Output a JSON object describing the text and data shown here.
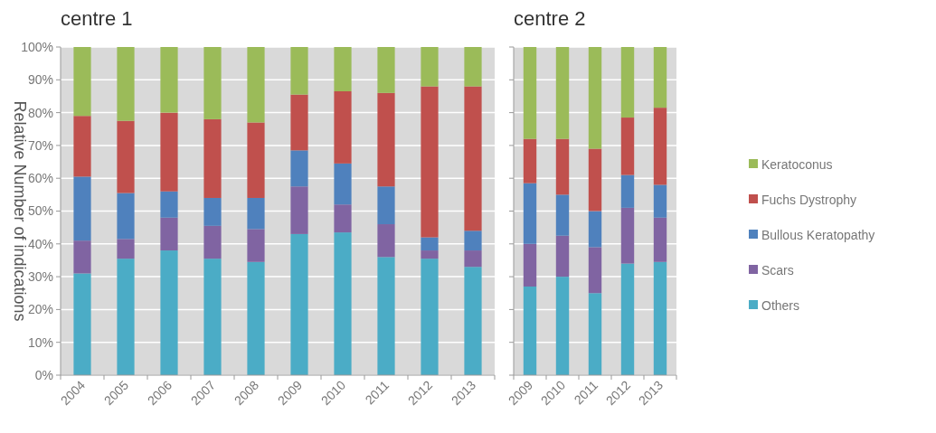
{
  "chart_data": [
    {
      "type": "bar",
      "title": "centre 1",
      "ylabel": "Relative Number of indications",
      "stacked": true,
      "categories": [
        "2004",
        "2005",
        "2006",
        "2007",
        "2008",
        "2009",
        "2010",
        "2011",
        "2012",
        "2013"
      ],
      "series": [
        {
          "color": "#4bacc6",
          "values": [
            31,
            35.5,
            38,
            35.5,
            34.5,
            43,
            43.5,
            36,
            35.5,
            33
          ]
        },
        {
          "color": "#8064a2",
          "values": [
            10,
            6,
            10,
            10,
            10,
            14.5,
            8.5,
            10,
            2.5,
            5
          ]
        },
        {
          "color": "#4f81bd",
          "values": [
            19.5,
            14,
            8,
            8.5,
            9.5,
            11,
            12.5,
            11.5,
            4,
            6
          ]
        },
        {
          "color": "#c0504d",
          "values": [
            18.5,
            22,
            24,
            24,
            23,
            17,
            22,
            28.5,
            46,
            44
          ]
        },
        {
          "color": "#9bbb59",
          "values": [
            21,
            22.5,
            20,
            22,
            23,
            14.5,
            13.5,
            14,
            12,
            12
          ]
        }
      ],
      "ylim": [
        0,
        100
      ],
      "yticks": [
        {
          "value": 0,
          "label": "0%"
        },
        {
          "value": 10,
          "label": "10%"
        },
        {
          "value": 20,
          "label": "20%"
        },
        {
          "value": 30,
          "label": "30%"
        },
        {
          "value": 40,
          "label": "40%"
        },
        {
          "value": 50,
          "label": "50%"
        },
        {
          "value": 60,
          "label": "60%"
        },
        {
          "value": 70,
          "label": "70%"
        },
        {
          "value": 80,
          "label": "80%"
        },
        {
          "value": 90,
          "label": "90%"
        },
        {
          "value": 100,
          "label": "100%"
        }
      ],
      "grid": "y",
      "legend": false
    },
    {
      "type": "bar",
      "title": "centre 2",
      "stacked": true,
      "categories": [
        "2009",
        "2010",
        "2011",
        "2012",
        "2013"
      ],
      "series": [
        {
          "name": "Others",
          "color": "#4bacc6",
          "values": [
            27,
            30,
            25,
            34,
            34.5
          ]
        },
        {
          "name": "Scars",
          "color": "#8064a2",
          "values": [
            13,
            12.5,
            14,
            17,
            13.5
          ]
        },
        {
          "name": "Bullous Keratopathy",
          "color": "#4f81bd",
          "values": [
            18.5,
            12.5,
            11,
            10,
            10
          ]
        },
        {
          "name": "Fuchs Dystrophy",
          "color": "#c0504d",
          "values": [
            13.5,
            17,
            19,
            17.5,
            23.5
          ]
        },
        {
          "name": "Keratoconus",
          "color": "#9bbb59",
          "values": [
            28,
            28,
            31,
            21.5,
            18.5
          ]
        }
      ],
      "ylim": [
        0,
        100
      ],
      "yticks": [
        {
          "value": 0,
          "label": null
        },
        {
          "value": 10,
          "label": null
        },
        {
          "value": 20,
          "label": null
        },
        {
          "value": 30,
          "label": null
        },
        {
          "value": 40,
          "label": null
        },
        {
          "value": 50,
          "label": null
        },
        {
          "value": 60,
          "label": null
        },
        {
          "value": 70,
          "label": null
        },
        {
          "value": 80,
          "label": null
        },
        {
          "value": 90,
          "label": null
        },
        {
          "value": 100,
          "label": null
        }
      ],
      "grid": "y",
      "legend": "right",
      "tick_labels": "x"
    }
  ]
}
